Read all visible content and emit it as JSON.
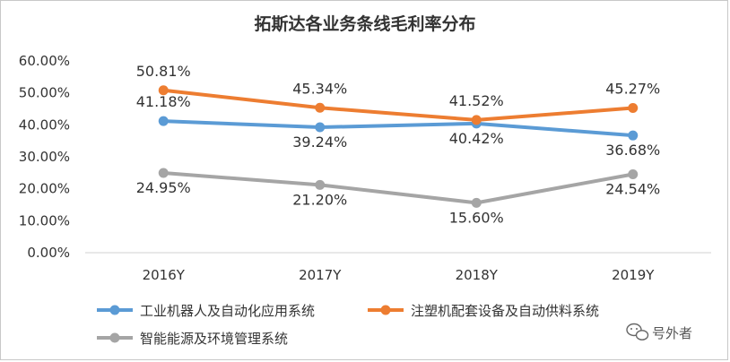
{
  "chart_data": {
    "type": "line",
    "title": "拓斯达各业务条线毛利率分布",
    "categories": [
      "2016Y",
      "2017Y",
      "2018Y",
      "2019Y"
    ],
    "ylim": [
      0,
      60
    ],
    "yticks": [
      "0.00%",
      "10.00%",
      "20.00%",
      "30.00%",
      "40.00%",
      "50.00%",
      "60.00%"
    ],
    "grid": false,
    "legend_position": "bottom",
    "series": [
      {
        "name": "工业机器人及自动化应用系统",
        "color": "#5b9bd5",
        "values": [
          41.18,
          39.24,
          40.42,
          36.68
        ],
        "labels": [
          "41.18%",
          "39.24%",
          "40.42%",
          "36.68%"
        ]
      },
      {
        "name": "注塑机配套设备及自动供料系统",
        "color": "#ed7d31",
        "values": [
          50.81,
          45.34,
          41.52,
          45.27
        ],
        "labels": [
          "50.81%",
          "45.34%",
          "41.52%",
          "45.27%"
        ]
      },
      {
        "name": "智能能源及环境管理系统",
        "color": "#a5a5a5",
        "values": [
          24.95,
          21.2,
          15.6,
          24.54
        ],
        "labels": [
          "24.95%",
          "21.20%",
          "15.60%",
          "24.54%"
        ]
      }
    ]
  },
  "watermark": {
    "text": "号外者",
    "icon": "wechat-icon"
  }
}
